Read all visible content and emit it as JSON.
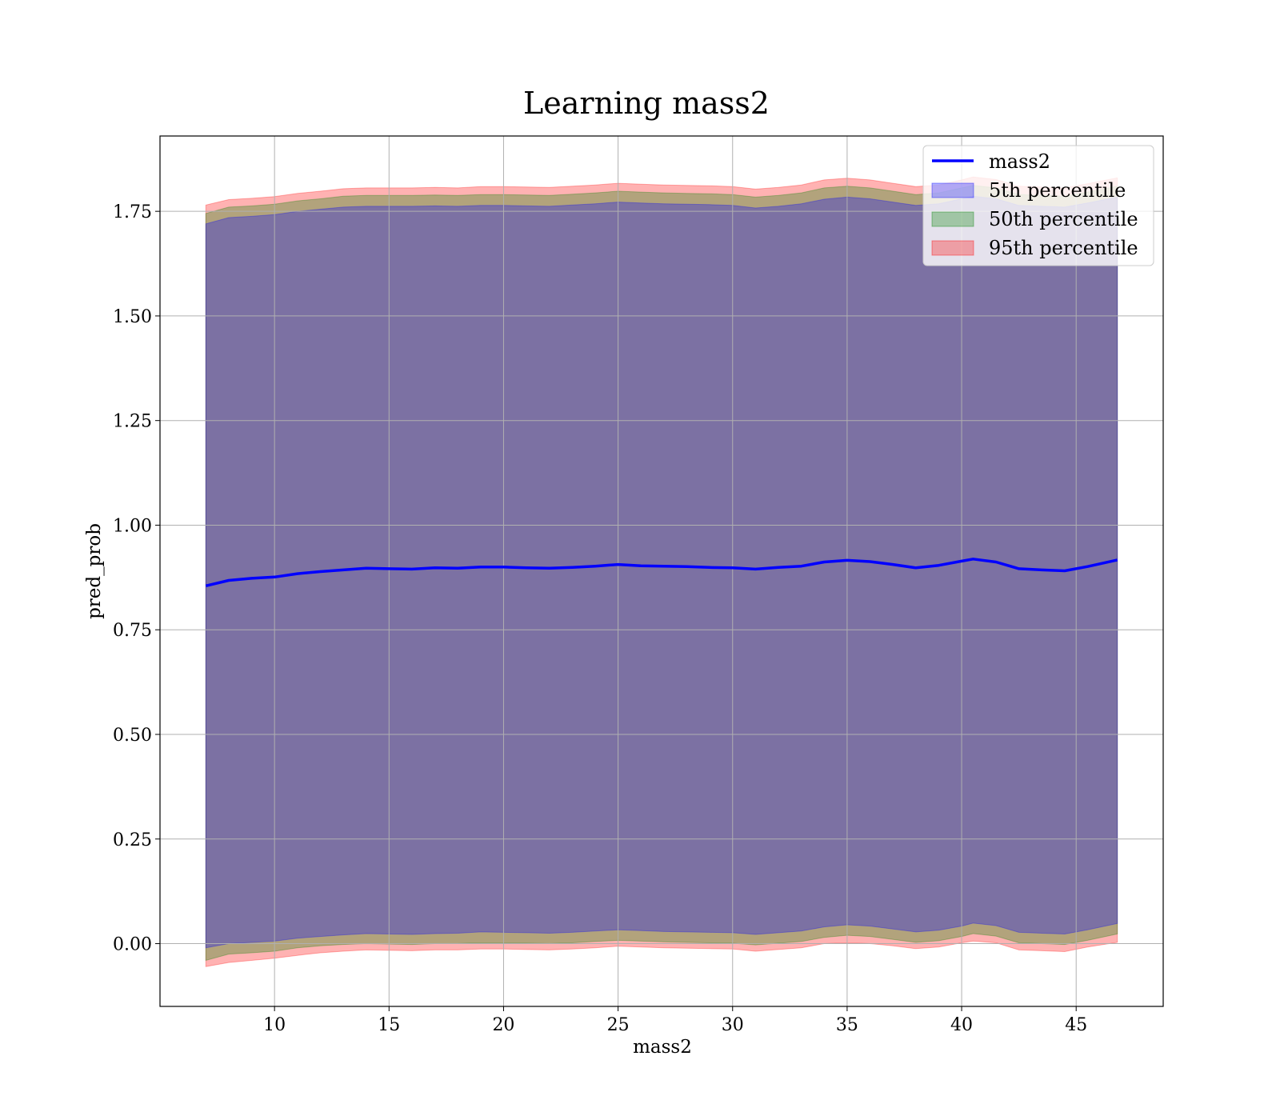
{
  "chart_data": {
    "type": "area",
    "title": "Learning mass2",
    "xlabel": "mass2",
    "ylabel": "pred_prob",
    "xlim": [
      5.0,
      48.8
    ],
    "ylim": [
      -0.15,
      1.93
    ],
    "xticks": [
      10,
      15,
      20,
      25,
      30,
      35,
      40,
      45
    ],
    "xtick_labels": [
      "10",
      "15",
      "20",
      "25",
      "30",
      "35",
      "40",
      "45"
    ],
    "yticks": [
      0.0,
      0.25,
      0.5,
      0.75,
      1.0,
      1.25,
      1.5,
      1.75
    ],
    "ytick_labels": [
      "0.00",
      "0.25",
      "0.50",
      "0.75",
      "1.00",
      "1.25",
      "1.50",
      "1.75"
    ],
    "grid": true,
    "legend_position": "top-right",
    "x": [
      7,
      8,
      9,
      10,
      11,
      12,
      13,
      14,
      15,
      16,
      17,
      18,
      19,
      20,
      21,
      22,
      23,
      24,
      25,
      26,
      27,
      28,
      29,
      30,
      31,
      32,
      33,
      34,
      35,
      36,
      37,
      38,
      39,
      40,
      40.5,
      41.5,
      42.5,
      43.5,
      44.5,
      45.5,
      46.8
    ],
    "series": [
      {
        "name": "mass2",
        "kind": "line",
        "color": "#0000ff",
        "values": [
          0.855,
          0.868,
          0.873,
          0.876,
          0.884,
          0.889,
          0.893,
          0.897,
          0.896,
          0.895,
          0.898,
          0.897,
          0.9,
          0.9,
          0.898,
          0.897,
          0.899,
          0.902,
          0.906,
          0.903,
          0.902,
          0.901,
          0.899,
          0.898,
          0.895,
          0.899,
          0.902,
          0.912,
          0.916,
          0.913,
          0.906,
          0.898,
          0.904,
          0.914,
          0.919,
          0.912,
          0.896,
          0.893,
          0.891,
          0.901,
          0.917
        ]
      },
      {
        "name": "5th percentile",
        "kind": "band",
        "color": "#0000ff",
        "lower": [
          -0.01,
          0.0,
          0.003,
          0.006,
          0.013,
          0.017,
          0.021,
          0.024,
          0.023,
          0.022,
          0.024,
          0.025,
          0.028,
          0.027,
          0.026,
          0.025,
          0.027,
          0.03,
          0.033,
          0.031,
          0.029,
          0.028,
          0.027,
          0.026,
          0.022,
          0.026,
          0.03,
          0.04,
          0.045,
          0.042,
          0.035,
          0.028,
          0.032,
          0.042,
          0.049,
          0.043,
          0.027,
          0.025,
          0.023,
          0.033,
          0.048
        ],
        "upper": [
          1.72,
          1.735,
          1.738,
          1.742,
          1.75,
          1.755,
          1.76,
          1.762,
          1.762,
          1.762,
          1.763,
          1.762,
          1.764,
          1.764,
          1.763,
          1.762,
          1.765,
          1.768,
          1.772,
          1.77,
          1.768,
          1.767,
          1.766,
          1.764,
          1.758,
          1.762,
          1.768,
          1.779,
          1.784,
          1.78,
          1.772,
          1.764,
          1.768,
          1.78,
          1.786,
          1.78,
          1.764,
          1.762,
          1.76,
          1.77,
          1.784
        ]
      },
      {
        "name": "50th percentile",
        "kind": "band",
        "color": "#008000",
        "lower": [
          -0.04,
          -0.025,
          -0.022,
          -0.018,
          -0.01,
          -0.005,
          -0.002,
          0.0,
          -0.001,
          -0.002,
          0.0,
          0.0,
          0.002,
          0.002,
          0.001,
          0.0,
          0.002,
          0.005,
          0.008,
          0.006,
          0.004,
          0.003,
          0.002,
          0.001,
          -0.003,
          0.001,
          0.005,
          0.015,
          0.02,
          0.017,
          0.01,
          0.003,
          0.007,
          0.017,
          0.024,
          0.018,
          0.002,
          0.0,
          -0.002,
          0.008,
          0.023
        ],
        "upper": [
          1.745,
          1.76,
          1.763,
          1.767,
          1.775,
          1.78,
          1.786,
          1.788,
          1.788,
          1.788,
          1.789,
          1.788,
          1.79,
          1.79,
          1.789,
          1.788,
          1.791,
          1.794,
          1.798,
          1.796,
          1.794,
          1.793,
          1.792,
          1.79,
          1.784,
          1.788,
          1.794,
          1.806,
          1.81,
          1.806,
          1.798,
          1.79,
          1.794,
          1.806,
          1.812,
          1.806,
          1.79,
          1.788,
          1.786,
          1.796,
          1.81
        ]
      },
      {
        "name": "95th percentile",
        "kind": "band",
        "color": "#ff0000",
        "lower": [
          -0.055,
          -0.045,
          -0.04,
          -0.035,
          -0.028,
          -0.022,
          -0.018,
          -0.015,
          -0.016,
          -0.017,
          -0.015,
          -0.015,
          -0.013,
          -0.013,
          -0.014,
          -0.015,
          -0.013,
          -0.01,
          -0.006,
          -0.008,
          -0.01,
          -0.011,
          -0.012,
          -0.013,
          -0.018,
          -0.014,
          -0.01,
          0.0,
          0.002,
          0.0,
          -0.005,
          -0.012,
          -0.008,
          0.002,
          0.006,
          0.002,
          -0.015,
          -0.017,
          -0.019,
          -0.008,
          0.003
        ],
        "upper": [
          1.765,
          1.778,
          1.781,
          1.785,
          1.793,
          1.798,
          1.804,
          1.806,
          1.806,
          1.806,
          1.807,
          1.806,
          1.809,
          1.809,
          1.808,
          1.807,
          1.81,
          1.813,
          1.817,
          1.815,
          1.813,
          1.812,
          1.811,
          1.809,
          1.803,
          1.807,
          1.813,
          1.825,
          1.829,
          1.825,
          1.817,
          1.809,
          1.813,
          1.825,
          1.832,
          1.826,
          1.81,
          1.808,
          1.806,
          1.816,
          1.83
        ]
      }
    ]
  }
}
